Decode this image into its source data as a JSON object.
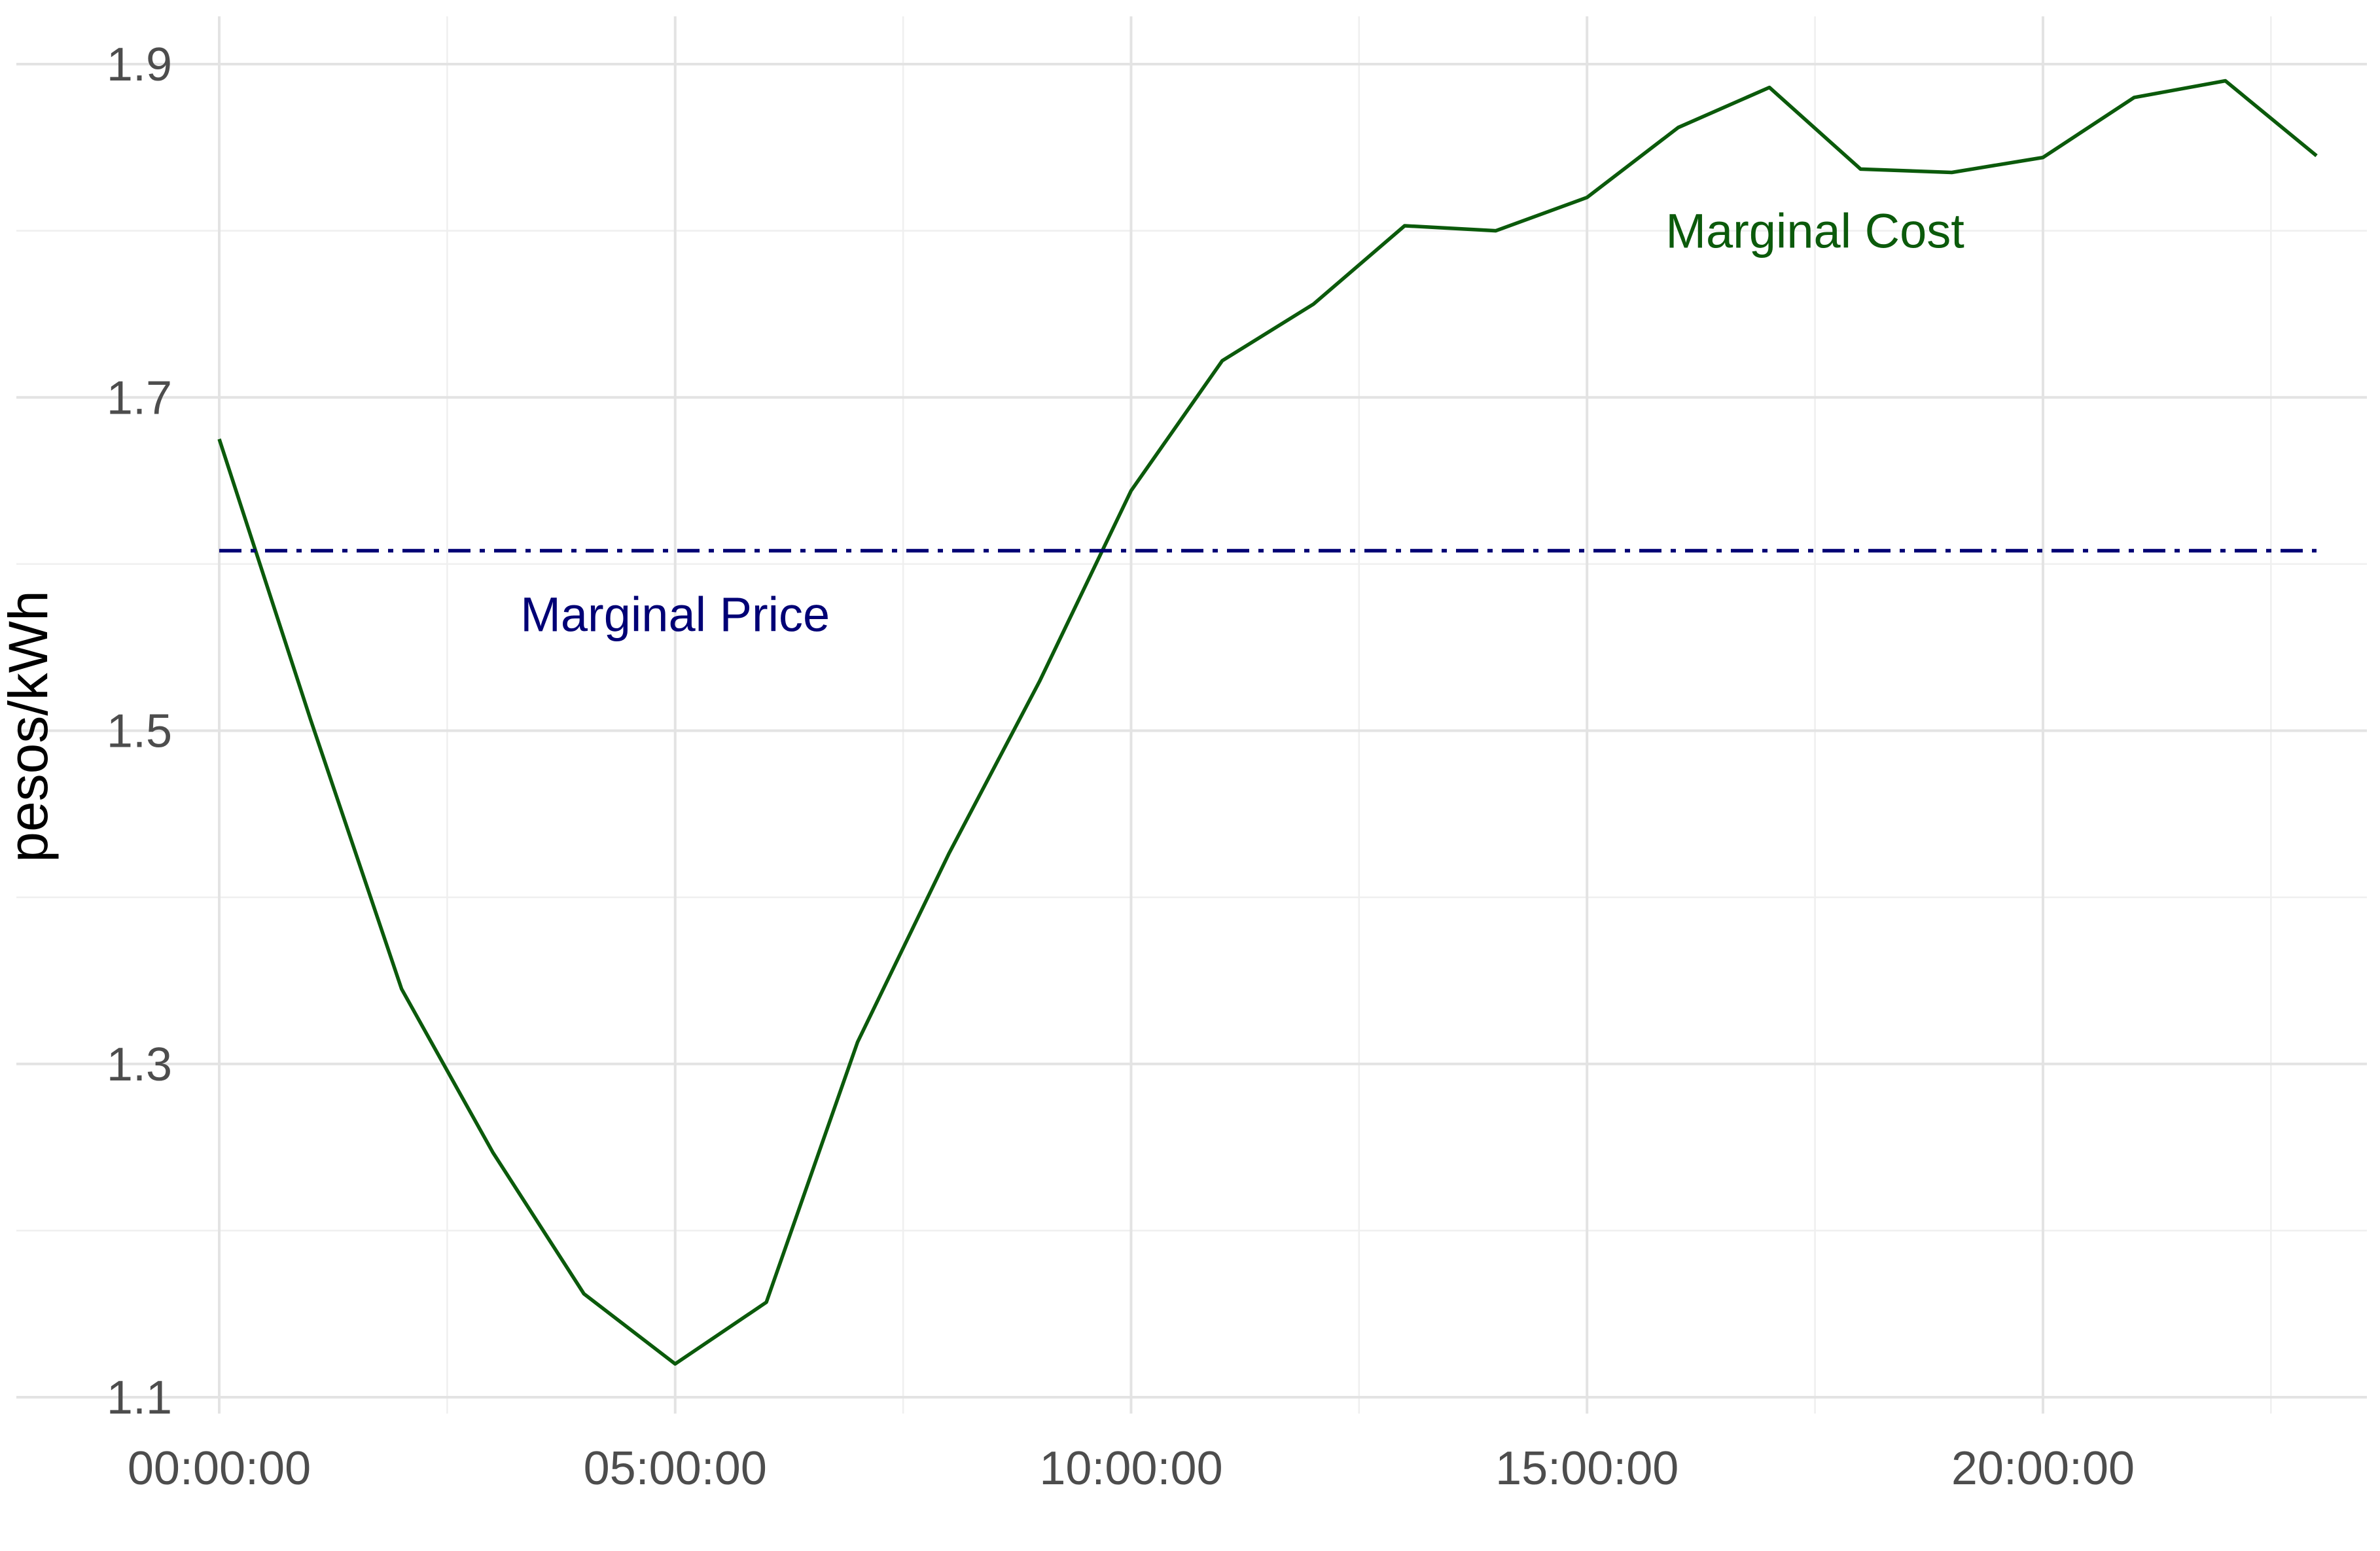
{
  "chart_data": {
    "type": "line",
    "title": "",
    "xlabel": "",
    "ylabel": "pesos/kWh",
    "xlim": [
      0,
      23
    ],
    "ylim": [
      1.1,
      1.9
    ],
    "x_ticks": [
      {
        "value": 0,
        "label": "00:00:00"
      },
      {
        "value": 5,
        "label": "05:00:00"
      },
      {
        "value": 10,
        "label": "10:00:00"
      },
      {
        "value": 15,
        "label": "15:00:00"
      },
      {
        "value": 20,
        "label": "20:00:00"
      }
    ],
    "y_ticks": [
      {
        "value": 1.1,
        "label": "1.1"
      },
      {
        "value": 1.3,
        "label": "1.3"
      },
      {
        "value": 1.5,
        "label": "1.5"
      },
      {
        "value": 1.7,
        "label": "1.7"
      },
      {
        "value": 1.9,
        "label": "1.9"
      }
    ],
    "grid": true,
    "legend": "none",
    "series": [
      {
        "name": "Marginal Cost",
        "color": "#0b5a0b",
        "style": "solid",
        "x": [
          0,
          1,
          2,
          3,
          4,
          5,
          6,
          7,
          8,
          9,
          10,
          11,
          12,
          13,
          14,
          15,
          16,
          17,
          18,
          19,
          20,
          21,
          22,
          23
        ],
        "y": [
          1.675,
          1.507,
          1.345,
          1.247,
          1.162,
          1.12,
          1.157,
          1.313,
          1.426,
          1.53,
          1.644,
          1.722,
          1.756,
          1.803,
          1.8,
          1.82,
          1.862,
          1.886,
          1.837,
          1.835,
          1.844,
          1.88,
          1.89,
          1.845
        ]
      },
      {
        "name": "Marginal Price",
        "color": "#000075",
        "style": "dashdot",
        "x": [
          0,
          23
        ],
        "y": [
          1.608,
          1.608
        ]
      }
    ],
    "annotations": [
      {
        "text": "Marginal Cost",
        "x": 17.5,
        "y": 1.8,
        "color": "#0b5a0b"
      },
      {
        "text": "Marginal Price",
        "x": 5.0,
        "y": 1.57,
        "color": "#000075"
      }
    ]
  }
}
